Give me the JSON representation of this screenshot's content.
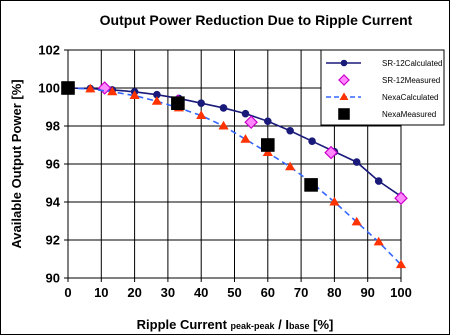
{
  "chart_data": {
    "type": "line",
    "title": "Output Power Reduction Due to Ripple Current",
    "xlabel": {
      "main": "Ripple Current ",
      "sub1": "peak-peak",
      "sep": " / I",
      "sub2": "base",
      "unit": " [%]"
    },
    "ylabel": "Available Output Power [%]",
    "xlim": [
      0,
      100
    ],
    "ylim": [
      90,
      102
    ],
    "x_ticks": [
      "0",
      "10",
      "20",
      "30",
      "40",
      "50",
      "60",
      "70",
      "80",
      "90",
      "100"
    ],
    "y_ticks": [
      "90",
      "92",
      "94",
      "96",
      "98",
      "100",
      "102"
    ],
    "grid": true,
    "legend_position": "top-right",
    "series": [
      {
        "name": "SR-12Calculated",
        "color": "#1a1a7a",
        "line": "solid",
        "marker": "circle",
        "x": [
          0,
          6.7,
          13.3,
          20,
          26.7,
          33.3,
          40,
          46.7,
          53.3,
          60,
          66.7,
          73.3,
          80,
          86.7,
          93.3,
          100
        ],
        "y": [
          100,
          99.97,
          99.9,
          99.8,
          99.65,
          99.45,
          99.2,
          98.95,
          98.65,
          98.25,
          97.75,
          97.2,
          96.65,
          96.1,
          95.1,
          94.3
        ]
      },
      {
        "name": "SR-12Measured",
        "color": "#cc00cc",
        "line": "none",
        "marker": "diamond",
        "x": [
          0,
          11,
          33,
          55,
          79,
          100
        ],
        "y": [
          100,
          100,
          99.3,
          98.2,
          96.6,
          94.2
        ]
      },
      {
        "name": "NexaCalculated",
        "color": "#3366ff",
        "marker_color": "#ff3300",
        "line": "dashed",
        "marker": "triangle",
        "x": [
          0,
          6.7,
          13.3,
          20,
          26.7,
          33.3,
          40,
          46.7,
          53.3,
          60,
          66.7,
          73.3,
          80,
          86.7,
          93.3,
          100
        ],
        "y": [
          100,
          99.95,
          99.8,
          99.6,
          99.3,
          98.95,
          98.55,
          98.0,
          97.3,
          96.6,
          95.85,
          95.0,
          94.0,
          92.95,
          91.9,
          90.7
        ]
      },
      {
        "name": "NexaMeasured",
        "color": "#000000",
        "line": "none",
        "marker": "square",
        "x": [
          0,
          33,
          60,
          73
        ],
        "y": [
          100,
          99.2,
          97.0,
          94.9
        ]
      }
    ]
  }
}
